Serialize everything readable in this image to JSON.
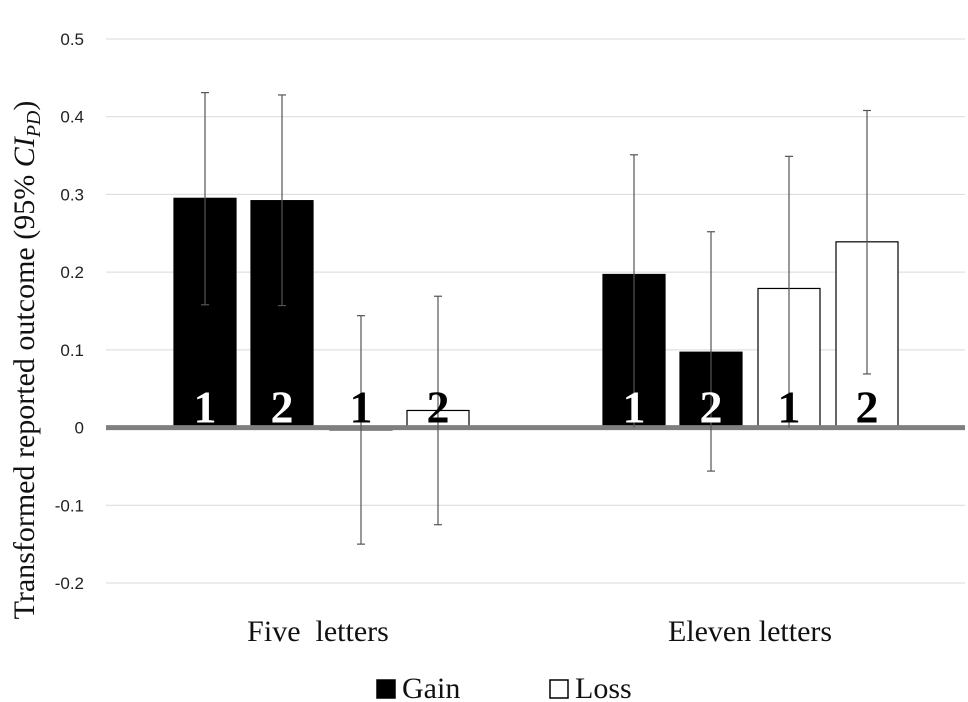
{
  "chart_data": {
    "type": "bar",
    "ylabel_main": "Transformed reported outcome (95% ",
    "ylabel_ci": "CI",
    "ylabel_sub": "PD",
    "ylabel_end": ")",
    "xlabel": "",
    "ylim": [
      -0.2,
      0.5
    ],
    "yticks": [
      "0.5",
      "0.4",
      "0.3",
      "0.2",
      "0.1",
      "0",
      "-0.1",
      "-0.2"
    ],
    "grid": true,
    "legend_position": "bottom",
    "categories": [
      "Five  letters",
      "Eleven letters"
    ],
    "bars": [
      {
        "category": "Five  letters",
        "label": "1",
        "series": "Gain",
        "value": 0.295,
        "ci_low": 0.158,
        "ci_high": 0.431
      },
      {
        "category": "Five  letters",
        "label": "2",
        "series": "Gain",
        "value": 0.292,
        "ci_low": 0.157,
        "ci_high": 0.428
      },
      {
        "category": "Five  letters",
        "label": "1",
        "series": "Loss",
        "value": -0.003,
        "ci_low": -0.15,
        "ci_high": 0.144
      },
      {
        "category": "Five  letters",
        "label": "2",
        "series": "Loss",
        "value": 0.022,
        "ci_low": -0.125,
        "ci_high": 0.169
      },
      {
        "category": "Eleven letters",
        "label": "1",
        "series": "Gain",
        "value": 0.197,
        "ci_low": 0.0,
        "ci_high": 0.351
      },
      {
        "category": "Eleven letters",
        "label": "2",
        "series": "Gain",
        "value": 0.097,
        "ci_low": -0.056,
        "ci_high": 0.252
      },
      {
        "category": "Eleven letters",
        "label": "1",
        "series": "Loss",
        "value": 0.179,
        "ci_low": 0.0,
        "ci_high": 0.349
      },
      {
        "category": "Eleven letters",
        "label": "2",
        "series": "Loss",
        "value": 0.239,
        "ci_low": 0.069,
        "ci_high": 0.408
      }
    ],
    "series": [
      {
        "name": "Gain",
        "color": "#000000"
      },
      {
        "name": "Loss",
        "color": "#ffffff"
      }
    ]
  }
}
